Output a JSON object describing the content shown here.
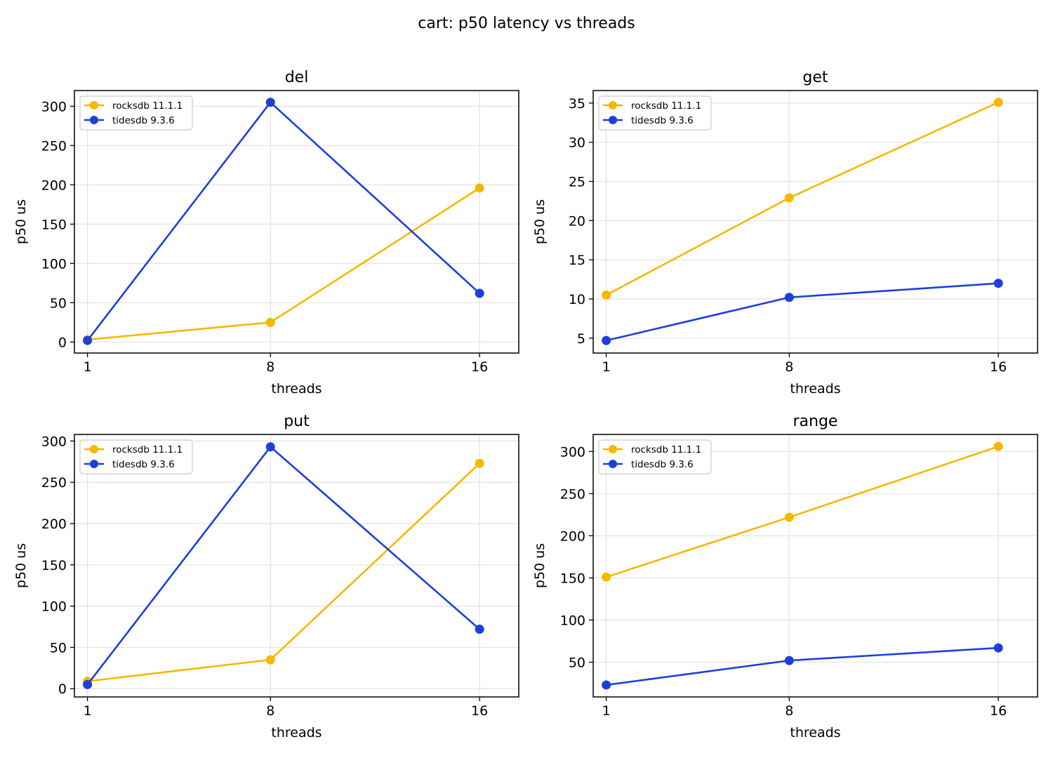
{
  "figure": {
    "title": "cart: p50 latency vs threads"
  },
  "legend": {
    "placement": "upper-left"
  },
  "chart_data": [
    {
      "type": "line",
      "title": "del",
      "xlabel": "threads",
      "ylabel": "p50 us",
      "x": [
        1,
        8,
        16
      ],
      "xlim": [
        0.5,
        17.5
      ],
      "ylim": [
        -14,
        320
      ],
      "yticks": [
        0,
        50,
        100,
        150,
        200,
        250,
        300
      ],
      "grid": true,
      "series": [
        {
          "name": "rocksdb 11.1.1",
          "color": "#f5b800",
          "values": [
            3,
            25,
            196
          ]
        },
        {
          "name": "tidesdb 9.3.6",
          "color": "#1c3fdc",
          "values": [
            2,
            305,
            62
          ]
        }
      ]
    },
    {
      "type": "line",
      "title": "get",
      "xlabel": "threads",
      "ylabel": "p50 us",
      "x": [
        1,
        8,
        16
      ],
      "xlim": [
        0.5,
        17.5
      ],
      "ylim": [
        3.1,
        36.6
      ],
      "yticks": [
        5,
        10,
        15,
        20,
        25,
        30,
        35
      ],
      "grid": true,
      "series": [
        {
          "name": "rocksdb 11.1.1",
          "color": "#f5b800",
          "values": [
            10.5,
            22.9,
            35.1
          ]
        },
        {
          "name": "tidesdb 9.3.6",
          "color": "#1c3fdc",
          "values": [
            4.7,
            10.2,
            12.0
          ]
        }
      ]
    },
    {
      "type": "line",
      "title": "put",
      "xlabel": "threads",
      "ylabel": "p50 us",
      "x": [
        1,
        8,
        16
      ],
      "xlim": [
        0.5,
        17.5
      ],
      "ylim": [
        -10,
        308
      ],
      "yticks": [
        0,
        50,
        100,
        150,
        200,
        250,
        300
      ],
      "grid": true,
      "series": [
        {
          "name": "rocksdb 11.1.1",
          "color": "#f5b800",
          "values": [
            9,
            35,
            273
          ]
        },
        {
          "name": "tidesdb 9.3.6",
          "color": "#1c3fdc",
          "values": [
            5,
            293,
            72
          ]
        }
      ]
    },
    {
      "type": "line",
      "title": "range",
      "xlabel": "threads",
      "ylabel": "p50 us",
      "x": [
        1,
        8,
        16
      ],
      "xlim": [
        0.5,
        17.5
      ],
      "ylim": [
        8.8,
        320.2
      ],
      "yticks": [
        50,
        100,
        150,
        200,
        250,
        300
      ],
      "grid": true,
      "series": [
        {
          "name": "rocksdb 11.1.1",
          "color": "#f5b800",
          "values": [
            151,
            222,
            306
          ]
        },
        {
          "name": "tidesdb 9.3.6",
          "color": "#1c3fdc",
          "values": [
            23,
            52,
            67
          ]
        }
      ]
    }
  ]
}
